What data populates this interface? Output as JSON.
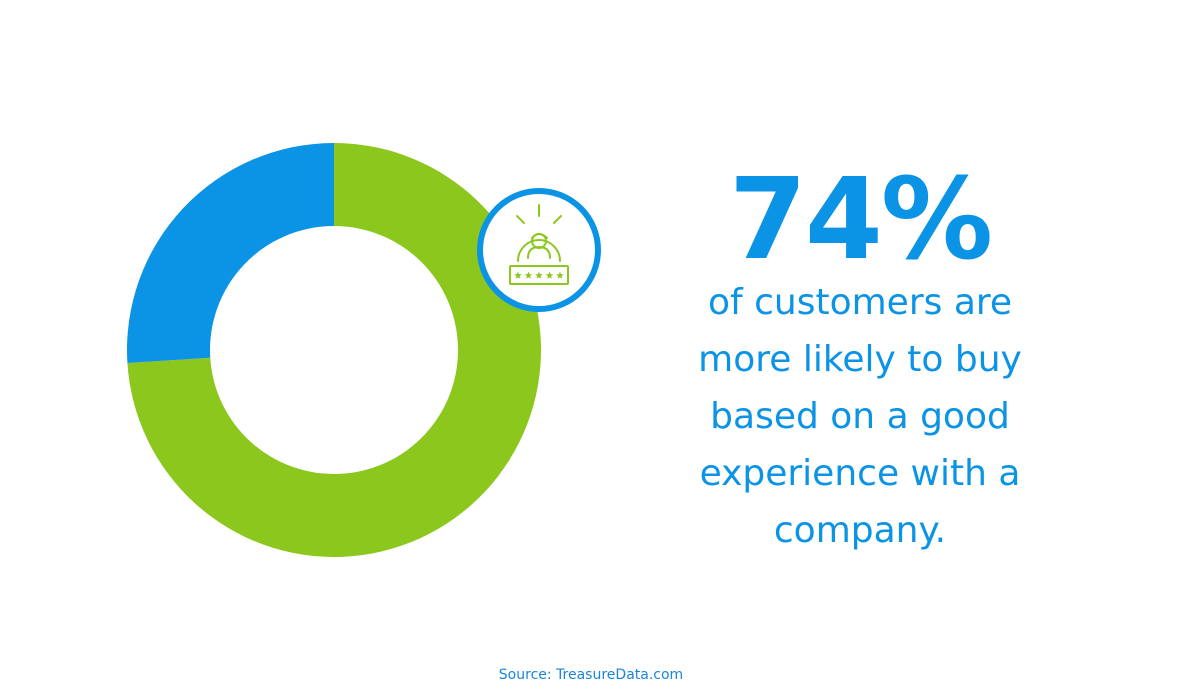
{
  "chart_data": {
    "type": "pie",
    "donut": true,
    "categories": [
      "",
      ""
    ],
    "values": [
      74,
      26
    ],
    "colors": [
      "#8cc71e",
      "#0b93e6"
    ],
    "title": "",
    "legend": "none"
  },
  "headline": {
    "stat": "74%",
    "lines": [
      "of customers are",
      "more likely to buy",
      "based on a good",
      "experience with a",
      "company."
    ]
  },
  "badge": {
    "icon": "customer-rating-icon",
    "stars": 5,
    "ring_color": "#0b93e6",
    "icon_color": "#8cc71e"
  },
  "footer": {
    "source": "Source: TreasureData.com"
  },
  "colors": {
    "accent": "#0b93e6",
    "positive": "#8cc71e",
    "background": "#ffffff"
  }
}
